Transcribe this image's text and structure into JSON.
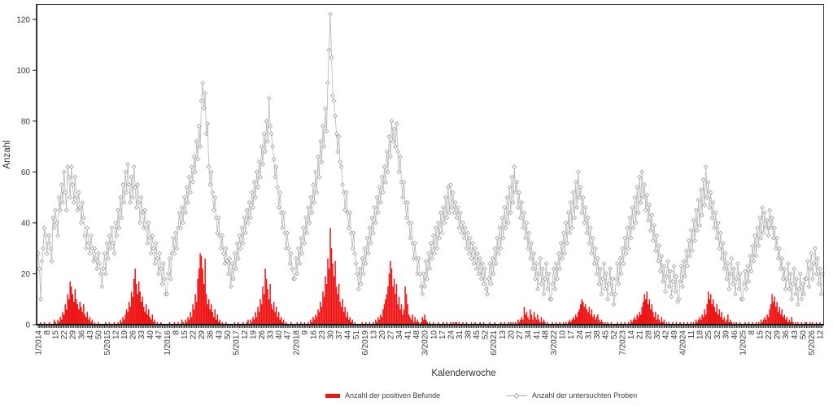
{
  "figure": {
    "y_axis_title": "Anzahl",
    "x_axis_title": "Kalenderwoche",
    "legend": [
      {
        "label": "Anzahl der positiven Befunde",
        "type": "bar",
        "color": "#ee1414"
      },
      {
        "label": "Anzahl der untersuchten Proben",
        "type": "line",
        "color": "#b6b6b6"
      }
    ]
  },
  "chart_data": {
    "type": "bar+line",
    "title": "",
    "xlabel": "Kalenderwoche",
    "ylabel": "Anzahl",
    "grid": false,
    "legend_position": "bottom",
    "ylim": [
      0,
      126
    ],
    "yticks": [
      0,
      20,
      40,
      60,
      80,
      100,
      120
    ],
    "x_unit": "calendar week (week/year)",
    "x_start": "1/2014",
    "x_end": "14/2026",
    "x_weeks_total": 640,
    "x_tick_label_every": 7,
    "x_tick_labels": [
      "1/2014",
      "8",
      "15",
      "22",
      "29",
      "36",
      "43",
      "50",
      "5/2015",
      "12",
      "19",
      "26",
      "33",
      "40",
      "47",
      "1/2016",
      "8",
      "15",
      "22",
      "29",
      "36",
      "43",
      "50",
      "5/2017",
      "12",
      "19",
      "26",
      "33",
      "40",
      "47",
      "2/2018",
      "9",
      "16",
      "23",
      "30",
      "37",
      "44",
      "51",
      "6/2019",
      "13",
      "20",
      "27",
      "34",
      "41",
      "48",
      "3/2020",
      "10",
      "17",
      "24",
      "31",
      "38",
      "45",
      "52",
      "6/2021",
      "13",
      "20",
      "27",
      "34",
      "41",
      "48",
      "3/2022",
      "10",
      "17",
      "24",
      "31",
      "38",
      "45",
      "52",
      "7/2023",
      "14",
      "21",
      "28",
      "35",
      "42",
      "49",
      "4/2024",
      "11",
      "18",
      "25",
      "32",
      "39",
      "46",
      "1/2025",
      "8",
      "15",
      "22",
      "29",
      "36",
      "43",
      "50",
      "5/2026",
      "12"
    ],
    "series": [
      {
        "name": "Anzahl der positiven Befunde",
        "type": "bar",
        "color": "#ee1414",
        "values": [
          0,
          0,
          1,
          0,
          0,
          1,
          0,
          0,
          0,
          1,
          0,
          0,
          0,
          2,
          1,
          0,
          2,
          1,
          3,
          2,
          5,
          4,
          8,
          6,
          12,
          10,
          17,
          15,
          12,
          9,
          14,
          10,
          8,
          6,
          9,
          7,
          5,
          8,
          4,
          3,
          5,
          2,
          3,
          1,
          2,
          0,
          1,
          0,
          0,
          1,
          0,
          0,
          0,
          0,
          0,
          1,
          0,
          0,
          1,
          0,
          0,
          0,
          1,
          0,
          0,
          1,
          0,
          2,
          1,
          3,
          2,
          4,
          6,
          5,
          9,
          7,
          13,
          11,
          18,
          22,
          16,
          12,
          17,
          13,
          9,
          11,
          7,
          5,
          8,
          4,
          6,
          3,
          2,
          4,
          1,
          2,
          0,
          1,
          0,
          0,
          1,
          0,
          0,
          0,
          0,
          0,
          0,
          1,
          0,
          0,
          0,
          1,
          0,
          0,
          1,
          0,
          0,
          2,
          1,
          0,
          2,
          1,
          3,
          2,
          5,
          3,
          8,
          6,
          12,
          9,
          18,
          22,
          28,
          27,
          22,
          16,
          26,
          12,
          8,
          10,
          6,
          8,
          5,
          3,
          6,
          2,
          4,
          1,
          2,
          0,
          1,
          0,
          0,
          1,
          0,
          0,
          0,
          0,
          0,
          0,
          1,
          0,
          0,
          1,
          0,
          0,
          0,
          1,
          0,
          0,
          1,
          2,
          0,
          2,
          1,
          3,
          2,
          5,
          3,
          7,
          5,
          10,
          8,
          15,
          12,
          22,
          18,
          14,
          10,
          16,
          8,
          6,
          9,
          5,
          7,
          3,
          5,
          2,
          3,
          1,
          2,
          0,
          1,
          0,
          0,
          0,
          1,
          0,
          0,
          0,
          0,
          1,
          0,
          0,
          1,
          0,
          0,
          1,
          0,
          0,
          1,
          0,
          2,
          1,
          3,
          2,
          4,
          3,
          6,
          5,
          9,
          7,
          13,
          11,
          19,
          16,
          26,
          22,
          38,
          30,
          24,
          19,
          25,
          15,
          12,
          16,
          9,
          7,
          10,
          5,
          7,
          3,
          5,
          2,
          3,
          1,
          2,
          0,
          1,
          0,
          0,
          0,
          0,
          0,
          1,
          0,
          0,
          1,
          0,
          0,
          1,
          0,
          0,
          1,
          0,
          2,
          1,
          3,
          2,
          4,
          3,
          6,
          8,
          10,
          12,
          15,
          20,
          25,
          22,
          15,
          18,
          12,
          16,
          8,
          11,
          6,
          8,
          4,
          6,
          15,
          12,
          8,
          4,
          3,
          2,
          4,
          1,
          3,
          1,
          2,
          1,
          0,
          1,
          3,
          2,
          4,
          2,
          1,
          0,
          1,
          0,
          0,
          1,
          0,
          0,
          0,
          1,
          0,
          0,
          0,
          1,
          0,
          0,
          1,
          0,
          0,
          1,
          0,
          1,
          0,
          1,
          1,
          0,
          1,
          0,
          0,
          1,
          0,
          0,
          1,
          0,
          0,
          0,
          1,
          0,
          0,
          1,
          0,
          0,
          0,
          1,
          0,
          0,
          1,
          0,
          0,
          0,
          0,
          1,
          0,
          0,
          0,
          1,
          0,
          0,
          0,
          0,
          1,
          0,
          0,
          1,
          0,
          0,
          1,
          0,
          1,
          0,
          1,
          0,
          1,
          0,
          2,
          1,
          2,
          3,
          2,
          7,
          4,
          5,
          3,
          2,
          6,
          4,
          2,
          5,
          3,
          2,
          4,
          2,
          1,
          3,
          1,
          2,
          1,
          0,
          1,
          0,
          0,
          0,
          1,
          0,
          0,
          1,
          0,
          0,
          1,
          0,
          0,
          1,
          0,
          1,
          0,
          1,
          2,
          1,
          2,
          3,
          2,
          4,
          3,
          5,
          6,
          8,
          10,
          9,
          7,
          8,
          6,
          5,
          7,
          4,
          6,
          3,
          4,
          2,
          3,
          4,
          2,
          1,
          2,
          1,
          0,
          1,
          0,
          1,
          0,
          0,
          1,
          0,
          0,
          0,
          0,
          1,
          0,
          0,
          1,
          0,
          0,
          1,
          0,
          0,
          1,
          0,
          2,
          1,
          2,
          3,
          2,
          4,
          3,
          5,
          4,
          7,
          9,
          12,
          10,
          13,
          8,
          10,
          6,
          8,
          5,
          3,
          5,
          2,
          4,
          2,
          1,
          3,
          1,
          2,
          0,
          1,
          0,
          1,
          0,
          0,
          1,
          0,
          0,
          1,
          0,
          0,
          1,
          0,
          0,
          1,
          0,
          0,
          1,
          0,
          0,
          1,
          0,
          1,
          0,
          2,
          1,
          2,
          3,
          2,
          4,
          3,
          6,
          4,
          8,
          13,
          10,
          12,
          8,
          10,
          7,
          5,
          8,
          4,
          6,
          3,
          5,
          2,
          3,
          1,
          2,
          4,
          1,
          2,
          1,
          0,
          1,
          0,
          1,
          0,
          0,
          1,
          0,
          0,
          0,
          1,
          0,
          0,
          1,
          0,
          0,
          1,
          0,
          0,
          1,
          0,
          1,
          0,
          2,
          1,
          2,
          3,
          2,
          4,
          3,
          6,
          8,
          12,
          9,
          11,
          7,
          9,
          5,
          7,
          4,
          6,
          3,
          4,
          2,
          3,
          1,
          2,
          1,
          3,
          1,
          0,
          1,
          0,
          1,
          0,
          0,
          1,
          0,
          0,
          1,
          1,
          0,
          0,
          1,
          0,
          1,
          0,
          0,
          1,
          0,
          0,
          1,
          0,
          0
        ]
      },
      {
        "name": "Anzahl der untersuchten Proben",
        "type": "line",
        "marker": "diamond",
        "color": "#b6b6b6",
        "marker_fill": "#ffffff",
        "marker_stroke": "#9e9e9e",
        "values": [
          28,
          22,
          10,
          25,
          30,
          38,
          35,
          28,
          32,
          35,
          30,
          25,
          42,
          38,
          45,
          40,
          35,
          50,
          45,
          55,
          48,
          60,
          52,
          45,
          62,
          58,
          50,
          62,
          55,
          48,
          58,
          50,
          45,
          52,
          46,
          40,
          48,
          42,
          35,
          30,
          38,
          32,
          28,
          35,
          30,
          25,
          30,
          26,
          22,
          28,
          24,
          20,
          15,
          22,
          28,
          20,
          32,
          26,
          35,
          30,
          38,
          32,
          28,
          40,
          35,
          45,
          38,
          50,
          42,
          55,
          48,
          60,
          52,
          63,
          55,
          48,
          58,
          50,
          62,
          54,
          46,
          55,
          48,
          40,
          50,
          44,
          38,
          45,
          38,
          32,
          40,
          34,
          28,
          35,
          30,
          24,
          32,
          26,
          20,
          28,
          22,
          16,
          24,
          18,
          12,
          12,
          20,
          26,
          18,
          28,
          34,
          28,
          36,
          30,
          38,
          44,
          38,
          46,
          40,
          50,
          44,
          54,
          48,
          58,
          52,
          62,
          56,
          66,
          60,
          72,
          65,
          78,
          70,
          88,
          95,
          85,
          91,
          75,
          79,
          62,
          55,
          60,
          52,
          45,
          50,
          42,
          36,
          42,
          35,
          30,
          35,
          28,
          24,
          30,
          25,
          20,
          26,
          15,
          24,
          18,
          28,
          22,
          32,
          26,
          35,
          30,
          38,
          32,
          42,
          36,
          45,
          40,
          48,
          42,
          52,
          46,
          56,
          50,
          60,
          54,
          64,
          58,
          70,
          63,
          75,
          68,
          80,
          72,
          89,
          78,
          75,
          70,
          65,
          58,
          62,
          54,
          46,
          52,
          44,
          38,
          44,
          36,
          30,
          36,
          30,
          24,
          28,
          22,
          18,
          18,
          26,
          20,
          30,
          24,
          34,
          28,
          38,
          32,
          42,
          36,
          46,
          40,
          50,
          44,
          55,
          48,
          60,
          52,
          66,
          58,
          72,
          64,
          78,
          70,
          85,
          76,
          95,
          108,
          122,
          105,
          90,
          88,
          82,
          75,
          68,
          74,
          64,
          62,
          55,
          52,
          45,
          52,
          44,
          38,
          44,
          36,
          30,
          36,
          28,
          24,
          20,
          14,
          22,
          16,
          26,
          20,
          30,
          24,
          34,
          28,
          38,
          32,
          42,
          36,
          46,
          40,
          50,
          44,
          54,
          48,
          58,
          52,
          62,
          56,
          68,
          60,
          74,
          66,
          80,
          72,
          77,
          70,
          79,
          68,
          60,
          66,
          56,
          50,
          56,
          48,
          42,
          48,
          40,
          34,
          40,
          32,
          26,
          32,
          26,
          20,
          26,
          20,
          15,
          12,
          20,
          15,
          25,
          18,
          28,
          22,
          32,
          26,
          35,
          28,
          38,
          30,
          40,
          34,
          44,
          36,
          46,
          40,
          50,
          42,
          54,
          44,
          55,
          46,
          52,
          44,
          48,
          42,
          46,
          38,
          44,
          36,
          40,
          34,
          38,
          30,
          36,
          28,
          34,
          26,
          32,
          24,
          30,
          22,
          28,
          20,
          26,
          18,
          24,
          16,
          22,
          14,
          12,
          18,
          24,
          16,
          26,
          20,
          30,
          24,
          34,
          28,
          38,
          30,
          42,
          34,
          46,
          38,
          50,
          40,
          54,
          44,
          58,
          48,
          62,
          52,
          56,
          46,
          52,
          42,
          48,
          38,
          44,
          34,
          40,
          30,
          36,
          26,
          32,
          22,
          28,
          18,
          24,
          14,
          20,
          26,
          16,
          22,
          12,
          18,
          24,
          14,
          20,
          10,
          10,
          16,
          22,
          14,
          24,
          18,
          28,
          22,
          32,
          26,
          36,
          28,
          40,
          32,
          44,
          36,
          48,
          38,
          52,
          42,
          56,
          46,
          60,
          50,
          54,
          44,
          50,
          40,
          46,
          36,
          42,
          32,
          38,
          28,
          34,
          24,
          30,
          20,
          26,
          16,
          22,
          12,
          18,
          24,
          14,
          20,
          10,
          16,
          22,
          12,
          18,
          8,
          12,
          18,
          24,
          16,
          26,
          20,
          30,
          24,
          34,
          28,
          38,
          30,
          42,
          34,
          46,
          38,
          50,
          40,
          54,
          44,
          58,
          48,
          60,
          50,
          55,
          45,
          51,
          41,
          47,
          37,
          43,
          33,
          39,
          29,
          35,
          25,
          31,
          21,
          27,
          17,
          23,
          13,
          19,
          25,
          15,
          21,
          11,
          17,
          23,
          13,
          19,
          9,
          10,
          17,
          23,
          15,
          25,
          19,
          29,
          23,
          33,
          27,
          37,
          29,
          41,
          33,
          45,
          37,
          49,
          39,
          53,
          43,
          57,
          47,
          62,
          50,
          56,
          46,
          52,
          42,
          48,
          38,
          44,
          34,
          40,
          30,
          36,
          26,
          32,
          22,
          28,
          18,
          24,
          14,
          20,
          26,
          16,
          22,
          12,
          18,
          24,
          14,
          20,
          10,
          10,
          16,
          21,
          14,
          23,
          17,
          27,
          21,
          31,
          25,
          35,
          27,
          38,
          31,
          42,
          34,
          46,
          36,
          44,
          38,
          41,
          35,
          45,
          38,
          42,
          34,
          38,
          30,
          34,
          26,
          30,
          22,
          26,
          18,
          22,
          14,
          18,
          24,
          14,
          20,
          10,
          16,
          22,
          12,
          18,
          8,
          14,
          20,
          10,
          16,
          12,
          18,
          18,
          25,
          15,
          22,
          28,
          18,
          24,
          30,
          20,
          26,
          16,
          22,
          12,
          20
        ]
      }
    ]
  }
}
